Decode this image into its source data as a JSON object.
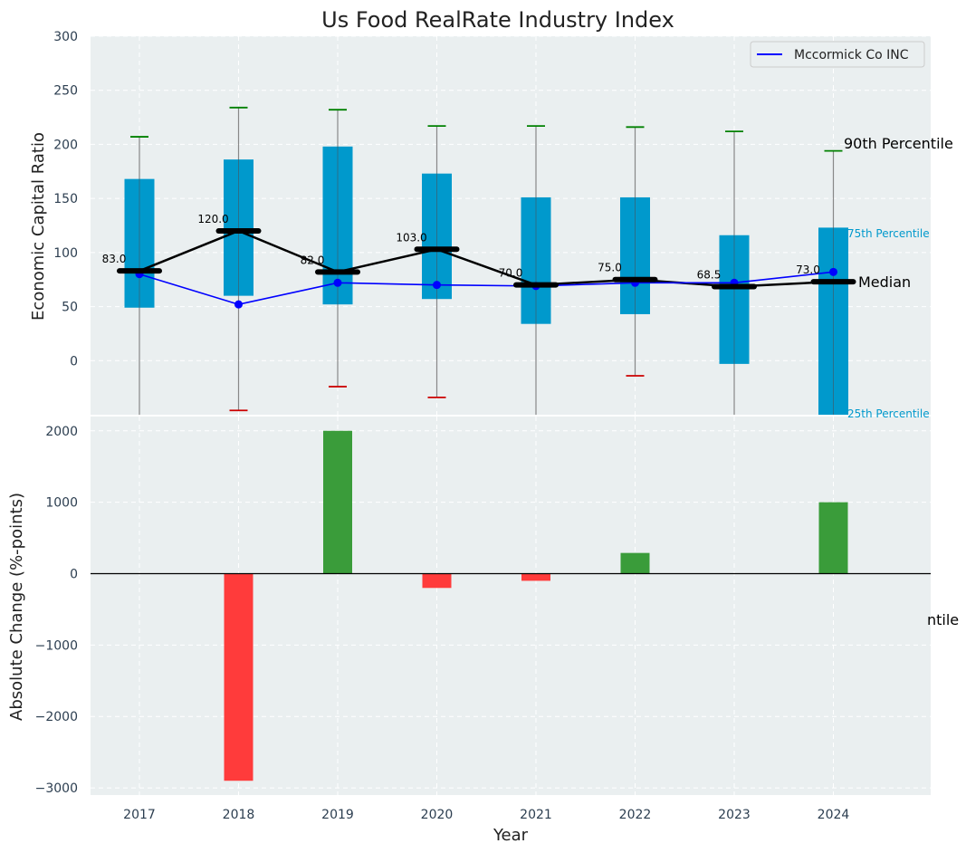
{
  "title": "Us Food RealRate Industry Index",
  "chart_data": [
    {
      "type": "box-line",
      "ylabel": "Economic Capital Ratio",
      "ylim": [
        -50,
        300
      ],
      "yticks": [
        "0",
        "50",
        "100",
        "150",
        "200",
        "250",
        "300"
      ],
      "categories": [
        "2017",
        "2018",
        "2019",
        "2020",
        "2021",
        "2022",
        "2023",
        "2024"
      ],
      "p90": [
        207,
        234,
        232,
        217,
        217,
        216,
        212,
        194
      ],
      "p75": [
        168,
        186,
        198,
        173,
        151,
        151,
        116,
        123
      ],
      "median": [
        83.0,
        120.0,
        82.0,
        103.0,
        70.0,
        75.0,
        68.5,
        73.0
      ],
      "median_labels": [
        "83.0",
        "120.0",
        "82.0",
        "103.0",
        "70.0",
        "75.0",
        "68.5",
        "73.0"
      ],
      "p25": [
        49,
        60,
        52,
        57,
        34,
        43,
        -3,
        -50
      ],
      "p10": [
        null,
        -46,
        -24,
        -34,
        null,
        -14,
        null,
        null
      ],
      "series": [
        {
          "name": "Mccormick Co INC",
          "color": "#0000ff",
          "values": [
            80,
            52,
            72,
            70,
            69,
            72,
            72,
            82
          ]
        }
      ],
      "annotations": {
        "p90": "90th Percentile",
        "p75": "75th Percentile",
        "median": "Median",
        "p25": "25th Percentile"
      },
      "legend_position": "top-right",
      "grid": true,
      "colors": {
        "box": "#0099cc",
        "whisker_top": "#008000",
        "whisker_bottom": "#cc0000",
        "median": "#000000"
      }
    },
    {
      "type": "bar",
      "ylabel": "Absolute Change (%-points)",
      "xlabel": "Year",
      "ylim": [
        -3100,
        2200
      ],
      "yticks": [
        "−3000",
        "−2000",
        "−1000",
        "0",
        "1000",
        "2000"
      ],
      "categories": [
        "2017",
        "2018",
        "2019",
        "2020",
        "2021",
        "2022",
        "2023",
        "2024"
      ],
      "values": [
        0,
        -2900,
        2000,
        -200,
        -100,
        290,
        0,
        1000
      ],
      "stray_text": "ntile",
      "grid": true,
      "colors": {
        "positive": "#3a9c3a",
        "negative": "#ff3b3b"
      }
    }
  ]
}
